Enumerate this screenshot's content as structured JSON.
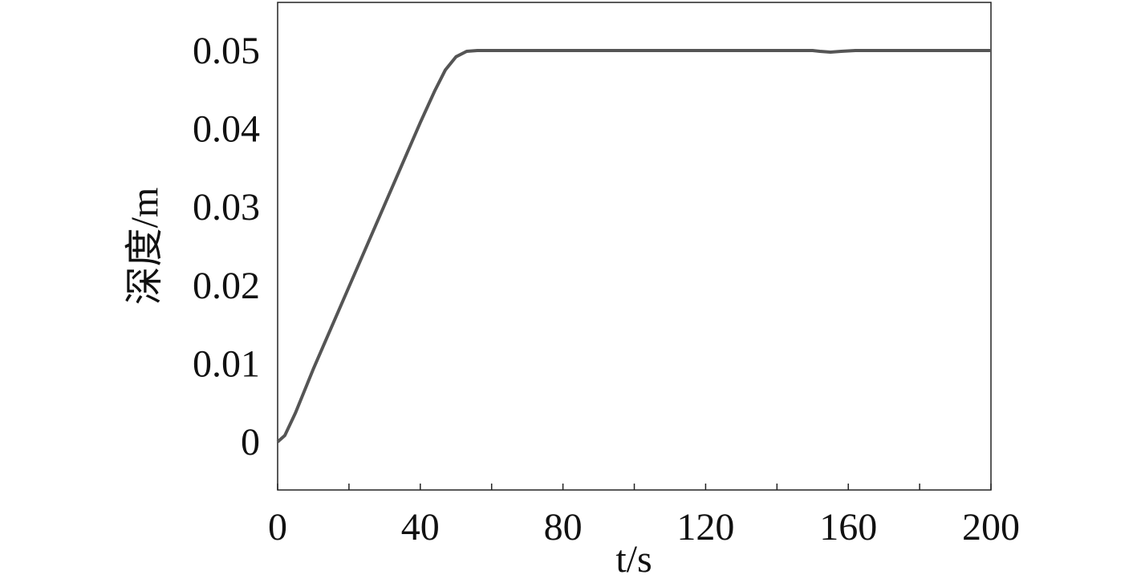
{
  "chart_data": {
    "type": "line",
    "xlabel": "t/s",
    "ylabel": "深度/m",
    "x": [
      0,
      2,
      5,
      10,
      20,
      30,
      40,
      44,
      47,
      50,
      53,
      56,
      60,
      100,
      150,
      152,
      155,
      158,
      162,
      200
    ],
    "series": [
      {
        "color": "#555555",
        "values": [
          0,
          0.0008,
          0.0037,
          0.0093,
          0.0198,
          0.0303,
          0.0408,
          0.0448,
          0.0475,
          0.0492,
          0.0499,
          0.05,
          0.05,
          0.05,
          0.05,
          0.0499,
          0.0498,
          0.0499,
          0.05,
          0.05
        ]
      }
    ],
    "xlim": [
      0,
      200
    ],
    "xticks": [
      0,
      40,
      80,
      120,
      160,
      200
    ],
    "xminorticks": [
      20,
      60,
      100,
      140,
      180
    ],
    "ylim": [
      -0.00615,
      0.05615
    ],
    "yticks": [
      0,
      0.01,
      0.02,
      0.03,
      0.04,
      0.05
    ],
    "grid": false
  }
}
